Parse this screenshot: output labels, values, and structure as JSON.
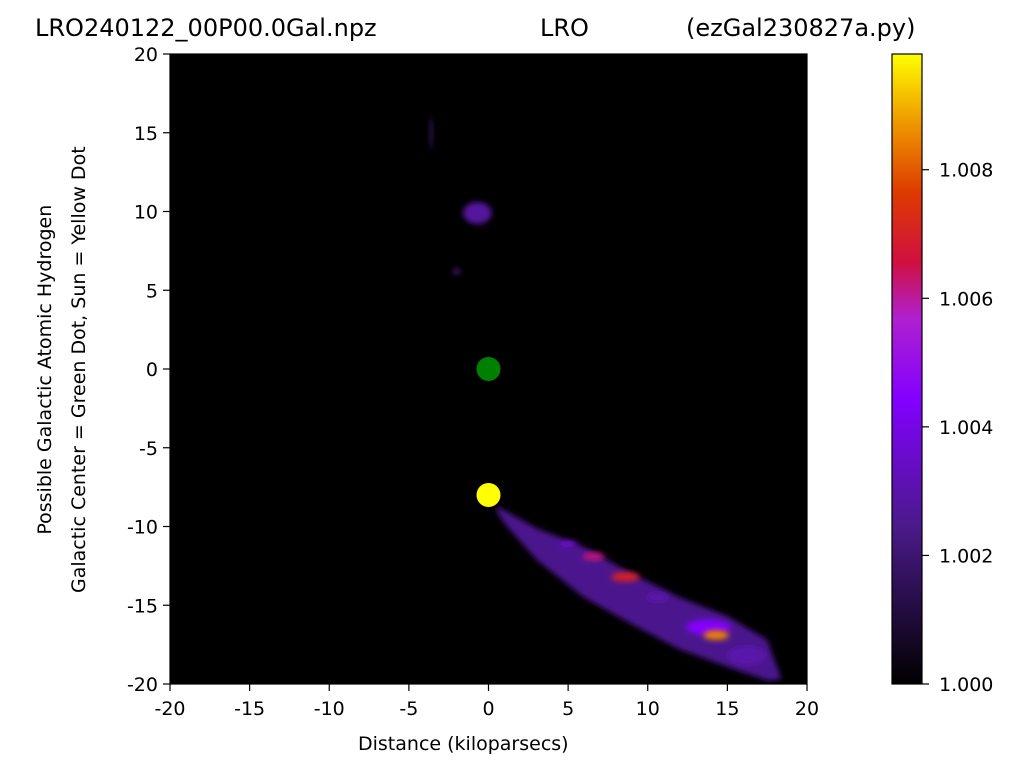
{
  "titles": {
    "left": "LRO240122_00P00.0Gal.npz",
    "center": "LRO",
    "right": "(ezGal230827a.py)"
  },
  "chart_data": {
    "type": "heatmap",
    "xlabel": "Distance (kiloparsecs)",
    "ylabel": "Possible Galactic Atomic Hydrogen\nGalactic Center = Green Dot, Sun = Yellow Dot",
    "xlim": [
      -20,
      20
    ],
    "ylim": [
      -20,
      20
    ],
    "x_ticks": [
      -20,
      -15,
      -10,
      -5,
      0,
      5,
      10,
      15,
      20
    ],
    "y_ticks": [
      -20,
      -15,
      -10,
      -5,
      0,
      5,
      10,
      15,
      20
    ],
    "colormap": "gnuplot",
    "colorbar": {
      "range": [
        1.0,
        1.0098
      ],
      "ticks": [
        "1.000",
        "1.002",
        "1.004",
        "1.006",
        "1.008"
      ]
    },
    "background": "#000000",
    "markers": [
      {
        "name": "Galactic Center",
        "x": 0,
        "y": 0,
        "color": "#008000"
      },
      {
        "name": "Sun",
        "x": 0,
        "y": -8,
        "color": "#ffff00"
      }
    ],
    "emission_band": {
      "points": [
        [
          0.5,
          -8.7
        ],
        [
          3,
          -10.1
        ],
        [
          6,
          -11.3
        ],
        [
          9,
          -13
        ],
        [
          12,
          -14.5
        ],
        [
          15,
          -15.7
        ],
        [
          17.5,
          -17.2
        ],
        [
          18.4,
          -19.7
        ],
        [
          17.6,
          -19.8
        ],
        [
          15,
          -18.9
        ],
        [
          12,
          -17.8
        ],
        [
          9,
          -16.2
        ],
        [
          6,
          -14.5
        ],
        [
          3,
          -12.1
        ],
        [
          1,
          -9.8
        ],
        [
          0.5,
          -9
        ]
      ],
      "value": 1.0025
    },
    "emission_clumps": [
      {
        "x": -0.7,
        "y": 9.9,
        "rx": 0.9,
        "ry": 0.7,
        "value": 1.0028
      },
      {
        "x": -2.0,
        "y": 6.2,
        "rx": 0.25,
        "ry": 0.2,
        "value": 1.002
      },
      {
        "x": -3.6,
        "y": 15.0,
        "rx": 0.1,
        "ry": 1.1,
        "value": 1.0018
      },
      {
        "x": 5.0,
        "y": -11.1,
        "rx": 0.6,
        "ry": 0.2,
        "value": 1.0035
      },
      {
        "x": 6.6,
        "y": -11.9,
        "rx": 0.7,
        "ry": 0.25,
        "value": 1.0062
      },
      {
        "x": 8.6,
        "y": -13.2,
        "rx": 0.9,
        "ry": 0.3,
        "value": 1.007
      },
      {
        "x": 10.6,
        "y": -14.5,
        "rx": 0.7,
        "ry": 0.3,
        "value": 1.003
      },
      {
        "x": 13.8,
        "y": -16.4,
        "rx": 1.4,
        "ry": 0.5,
        "value": 1.0045
      },
      {
        "x": 14.3,
        "y": -16.9,
        "rx": 0.8,
        "ry": 0.3,
        "value": 1.0085
      },
      {
        "x": 16.2,
        "y": -18.2,
        "rx": 1.2,
        "ry": 0.6,
        "value": 1.003
      }
    ]
  }
}
